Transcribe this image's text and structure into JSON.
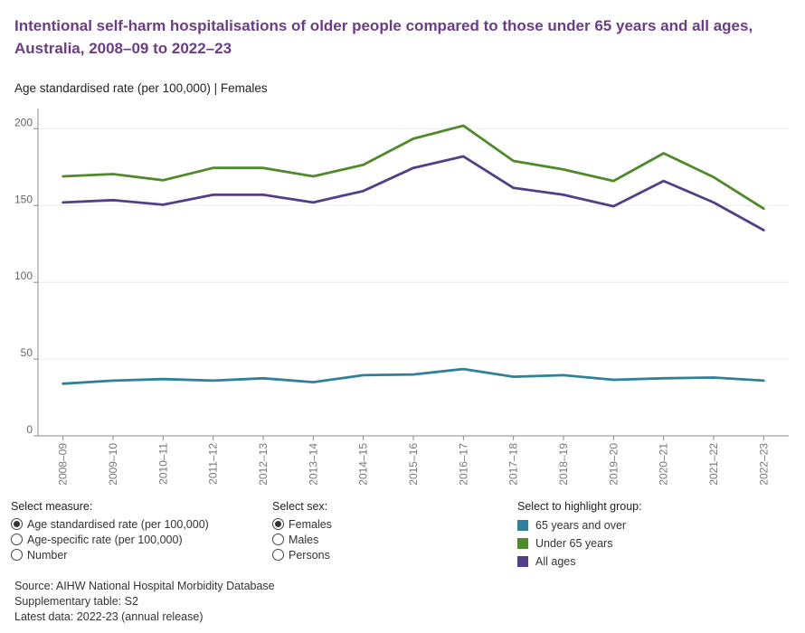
{
  "title": "Intentional self-harm hospitalisations of older people compared to those under 65 years and all ages, Australia, 2008–09 to 2022–23",
  "subtitle": "Age standardised rate (per 100,000) | Females",
  "chart_data": {
    "type": "line",
    "categories": [
      "2008–09",
      "2009–10",
      "2010–11",
      "2011–12",
      "2012–13",
      "2013–14",
      "2014–15",
      "2015–16",
      "2016–17",
      "2017–18",
      "2018–19",
      "2019–20",
      "2020–21",
      "2021–22",
      "2022–23"
    ],
    "series": [
      {
        "name": "Under 65 years",
        "color": "#4e8a2b",
        "values": [
          169,
          170.5,
          166.5,
          174.5,
          174.5,
          169,
          176.5,
          193.5,
          202,
          179,
          173.5,
          166,
          184,
          168.5,
          148
        ]
      },
      {
        "name": "All ages",
        "color": "#523f87",
        "values": [
          152,
          153.5,
          150.5,
          157,
          157,
          152,
          159.5,
          174.5,
          182,
          161.5,
          157,
          149.5,
          166,
          152,
          134
        ]
      },
      {
        "name": "65 years and over",
        "color": "#2f8199",
        "values": [
          34,
          36,
          37,
          36,
          37.5,
          35,
          39.5,
          40,
          43.5,
          38.5,
          39.5,
          36.5,
          37.5,
          38,
          36
        ]
      }
    ],
    "yticks": [
      0,
      50,
      100,
      150,
      200
    ],
    "ylim": [
      0,
      212
    ],
    "grid": true
  },
  "controls": {
    "measure": {
      "title": "Select measure:",
      "options": [
        "Age standardised rate (per 100,000)",
        "Age-specific rate (per 100,000)",
        "Number"
      ],
      "selected": 0
    },
    "sex": {
      "title": "Select sex:",
      "options": [
        "Females",
        "Males",
        "Persons"
      ],
      "selected": 0
    },
    "highlight": {
      "title": "Select to highlight group:",
      "items": [
        {
          "label": "65 years and over",
          "color": "#2f8199"
        },
        {
          "label": "Under 65 years",
          "color": "#4e8a2b"
        },
        {
          "label": "All ages",
          "color": "#523f87"
        }
      ]
    }
  },
  "footer": {
    "source": "Source: AIHW National Hospital Morbidity Database",
    "table": "Supplementary table: S2",
    "latest": "Latest data: 2022-23 (annual release)"
  }
}
